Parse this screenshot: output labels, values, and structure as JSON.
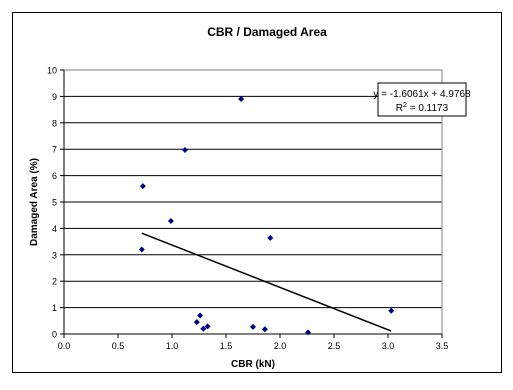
{
  "chart_data": {
    "type": "scatter",
    "title": "CBR /  Damaged Area",
    "xlabel": "CBR (kN)",
    "ylabel": "Damaged Area (%)",
    "xlim": [
      0,
      3.5
    ],
    "ylim": [
      0,
      10
    ],
    "x_ticks": [
      "0.0",
      "0.5",
      "1.0",
      "1.5",
      "2.0",
      "2.5",
      "3.0",
      "3.5"
    ],
    "y_ticks": [
      "0",
      "1",
      "2",
      "3",
      "4",
      "5",
      "6",
      "7",
      "8",
      "9",
      "10"
    ],
    "grid": "horizontal",
    "marker_color": "#00007f",
    "series": [
      {
        "points": [
          [
            0.72,
            3.2
          ],
          [
            0.73,
            5.6
          ],
          [
            0.99,
            4.28
          ],
          [
            1.12,
            6.97
          ],
          [
            1.23,
            0.45
          ],
          [
            1.26,
            0.7
          ],
          [
            1.29,
            0.2
          ],
          [
            1.33,
            0.29
          ],
          [
            1.64,
            8.9
          ],
          [
            1.75,
            0.27
          ],
          [
            1.86,
            0.18
          ],
          [
            1.91,
            3.64
          ],
          [
            2.26,
            0.06
          ],
          [
            3.03,
            0.88
          ]
        ]
      }
    ],
    "trendline": {
      "slope": -1.6061,
      "intercept": 4.9768,
      "x_range": [
        0.72,
        3.03
      ],
      "equation": "y = -1.6061x + 4.9768",
      "r2_label": "R",
      "r2_sup": "2",
      "r2_value": " = 0.1173"
    }
  }
}
